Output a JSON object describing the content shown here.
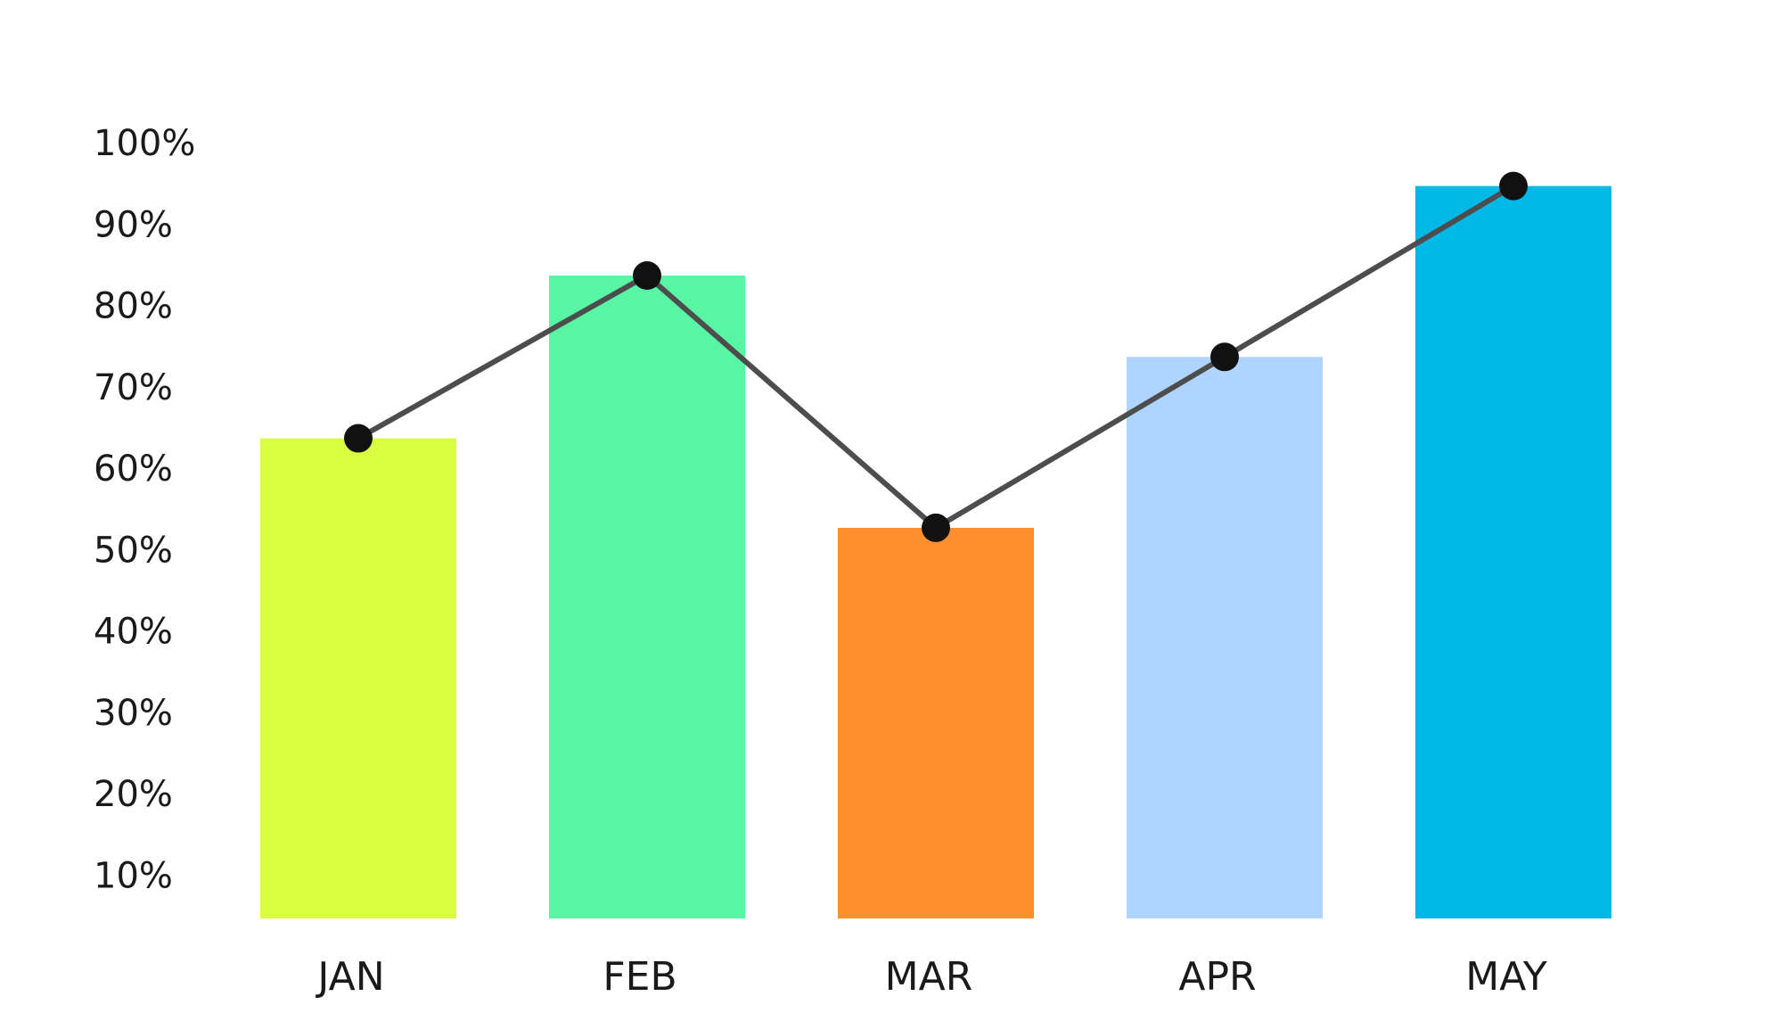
{
  "chart_data": {
    "type": "bar",
    "title": "",
    "xlabel": "",
    "ylabel": "",
    "categories": [
      "JAN",
      "FEB",
      "MAR",
      "APR",
      "MAY"
    ],
    "values": [
      64,
      84,
      53,
      74,
      95
    ],
    "bar_colors": [
      "#d8ff40",
      "#58f6a4",
      "#ff902b",
      "#afd4ff",
      "#00b8e6"
    ],
    "line": {
      "values": [
        64,
        84,
        53,
        74,
        95
      ],
      "color": "#4d4d4d",
      "marker_color": "#111111"
    },
    "y_ticks": [
      "10%",
      "20%",
      "30%",
      "40%",
      "50%",
      "60%",
      "70%",
      "80%",
      "90%",
      "100%"
    ],
    "y_tick_values": [
      10,
      20,
      30,
      40,
      50,
      60,
      70,
      80,
      90,
      100
    ],
    "ylim": [
      5,
      100
    ],
    "grid": false,
    "legend": "none"
  }
}
